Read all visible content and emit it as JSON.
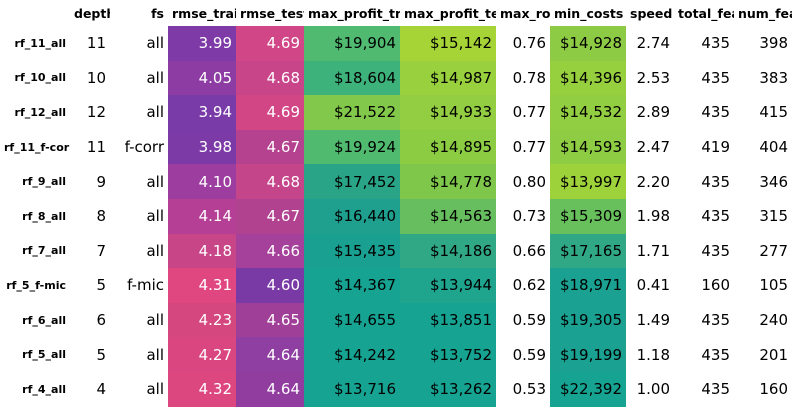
{
  "columns": [
    "depth",
    "fs",
    "rmse_train",
    "rmse_test",
    "max_profit_train",
    "max_profit_test",
    "max_roi",
    "min_costs",
    "speed",
    "total_feat",
    "num_feat"
  ],
  "rows": [
    {
      "label": "rf_11_all",
      "cells": [
        "11",
        "all",
        "3.99",
        "4.69",
        "$19,904",
        "$15,142",
        "0.76",
        "$14,928",
        "2.74",
        "435",
        "398"
      ]
    },
    {
      "label": "rf_10_all",
      "cells": [
        "10",
        "all",
        "4.05",
        "4.68",
        "$18,604",
        "$14,987",
        "0.78",
        "$14,396",
        "2.53",
        "435",
        "383"
      ]
    },
    {
      "label": "rf_12_all",
      "cells": [
        "12",
        "all",
        "3.94",
        "4.69",
        "$21,522",
        "$14,933",
        "0.77",
        "$14,532",
        "2.89",
        "435",
        "415"
      ]
    },
    {
      "label": "rf_11_f-corr",
      "cells": [
        "11",
        "f-corr",
        "3.98",
        "4.67",
        "$19,924",
        "$14,895",
        "0.77",
        "$14,593",
        "2.47",
        "419",
        "404"
      ]
    },
    {
      "label": "rf_9_all",
      "cells": [
        "9",
        "all",
        "4.10",
        "4.68",
        "$17,452",
        "$14,778",
        "0.80",
        "$13,997",
        "2.20",
        "435",
        "346"
      ]
    },
    {
      "label": "rf_8_all",
      "cells": [
        "8",
        "all",
        "4.14",
        "4.67",
        "$16,440",
        "$14,563",
        "0.73",
        "$15,309",
        "1.98",
        "435",
        "315"
      ]
    },
    {
      "label": "rf_7_all",
      "cells": [
        "7",
        "all",
        "4.18",
        "4.66",
        "$15,435",
        "$14,186",
        "0.66",
        "$17,165",
        "1.71",
        "435",
        "277"
      ]
    },
    {
      "label": "rf_5_f-mic",
      "cells": [
        "5",
        "f-mic",
        "4.31",
        "4.60",
        "$14,367",
        "$13,944",
        "0.62",
        "$18,971",
        "0.41",
        "160",
        "105"
      ]
    },
    {
      "label": "rf_6_all",
      "cells": [
        "6",
        "all",
        "4.23",
        "4.65",
        "$14,655",
        "$13,851",
        "0.59",
        "$19,305",
        "1.49",
        "435",
        "240"
      ]
    },
    {
      "label": "rf_5_all",
      "cells": [
        "5",
        "all",
        "4.27",
        "4.64",
        "$14,242",
        "$13,752",
        "0.59",
        "$19,199",
        "1.18",
        "435",
        "201"
      ]
    },
    {
      "label": "rf_4_all",
      "cells": [
        "4",
        "all",
        "4.32",
        "4.64",
        "$13,716",
        "$13,262",
        "0.53",
        "$22,392",
        "1.00",
        "435",
        "160"
      ]
    }
  ],
  "heatmap_colors": {
    "rmse_train": [
      "#7e3aa6",
      "#8c3ca2",
      "#783ba8",
      "#7c3aa7",
      "#9c3d9f",
      "#b53f95",
      "#c84588",
      "#e0467f",
      "#d4477f",
      "#da4680",
      "#dd477f"
    ],
    "rmse_test": [
      "#d04686",
      "#c8458a",
      "#d24686",
      "#b4428f",
      "#c5458b",
      "#b04290",
      "#a5419a",
      "#7a3aa6",
      "#a03f98",
      "#8f3ea1",
      "#913da0"
    ],
    "max_profit_train": [
      "#4fba70",
      "#3db27b",
      "#82c84a",
      "#50bb6f",
      "#2aa486",
      "#1fa08f",
      "#1aa090",
      "#17a392",
      "#17a392",
      "#17a392",
      "#17a392"
    ],
    "max_profit_test": [
      "#a6d437",
      "#98d03e",
      "#92cd42",
      "#8ccc43",
      "#7ec74a",
      "#67be5e",
      "#30a886",
      "#1fa48e",
      "#17a392",
      "#17a392",
      "#17a392"
    ],
    "min_costs": [
      "#8dcb44",
      "#96d03f",
      "#92ce41",
      "#8ecd43",
      "#9ed23b",
      "#68c05c",
      "#30a886",
      "#1ba191",
      "#1aa191",
      "#1aa191",
      "#17a392"
    ]
  }
}
